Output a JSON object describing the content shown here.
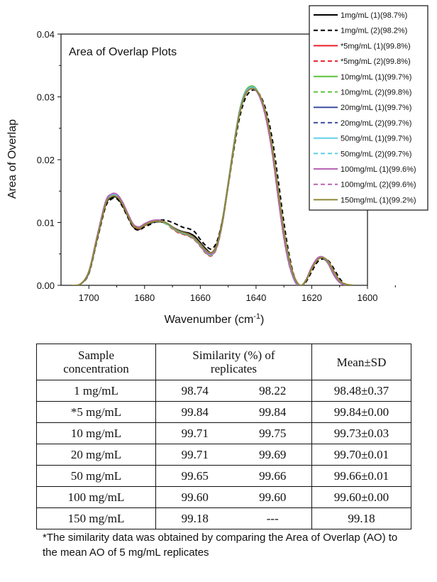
{
  "chart_data": {
    "type": "line",
    "title": "Area of Overlap Plots",
    "xlabel": "Wavenumber (cm",
    "xlabel_sup": "-1",
    "xlabel_end": ")",
    "ylabel": "Area of Overlap",
    "xlim": [
      1710,
      1600
    ],
    "ylim": [
      0,
      0.04
    ],
    "xticks": [
      "1700",
      "1680",
      "1660",
      "1640",
      "1620",
      "1600"
    ],
    "yticks": [
      "0.00",
      "0.01",
      "0.02",
      "0.03",
      "0.04"
    ],
    "x": [
      1706,
      1703,
      1700,
      1697,
      1694,
      1692,
      1690,
      1688,
      1686,
      1684,
      1682,
      1680,
      1678,
      1676,
      1674,
      1672,
      1670,
      1668,
      1666,
      1664,
      1662,
      1660,
      1658,
      1656,
      1654,
      1652,
      1650,
      1648,
      1646,
      1644,
      1642,
      1640,
      1638,
      1636,
      1634,
      1632,
      1630,
      1628,
      1626,
      1624,
      1622,
      1620,
      1618,
      1616,
      1614,
      1612,
      1610,
      1608,
      1605
    ],
    "legend_position": "top-right",
    "series": [
      {
        "name": "1mg/mL (1)(98.7%)",
        "color": "#000000",
        "dash": "solid",
        "values": [
          0,
          0.0002,
          0.002,
          0.0075,
          0.0128,
          0.0139,
          0.014,
          0.0128,
          0.011,
          0.0093,
          0.0089,
          0.0095,
          0.0099,
          0.0101,
          0.0101,
          0.0098,
          0.0093,
          0.0088,
          0.0085,
          0.0083,
          0.0078,
          0.0068,
          0.0058,
          0.0052,
          0.0066,
          0.0105,
          0.0162,
          0.0222,
          0.0272,
          0.0302,
          0.0313,
          0.0311,
          0.0295,
          0.0262,
          0.0212,
          0.0145,
          0.008,
          0.0035,
          0.0007,
          -0.0002,
          0.0008,
          0.0027,
          0.0041,
          0.0043,
          0.0034,
          0.0016,
          0.0005,
          0.0001,
          0
        ]
      },
      {
        "name": "1mg/mL (2)(98.2%)",
        "color": "#000000",
        "dash": "dashed",
        "values": [
          0,
          0.0002,
          0.0019,
          0.0073,
          0.0125,
          0.0137,
          0.0138,
          0.0126,
          0.0108,
          0.0092,
          0.0088,
          0.0093,
          0.0097,
          0.0101,
          0.0104,
          0.0103,
          0.01,
          0.0096,
          0.0092,
          0.009,
          0.0085,
          0.0073,
          0.0063,
          0.0058,
          0.007,
          0.0105,
          0.0158,
          0.0215,
          0.0265,
          0.0296,
          0.0309,
          0.031,
          0.0298,
          0.0272,
          0.0228,
          0.0166,
          0.01,
          0.0046,
          0.0011,
          0,
          0.0006,
          0.0022,
          0.0037,
          0.0042,
          0.0039,
          0.0026,
          0.0011,
          0.0002,
          0
        ]
      },
      {
        "name": "*5mg/mL (1)(99.8%)",
        "color": "#e8212b",
        "dash": "solid",
        "values": [
          0,
          0.0002,
          0.0022,
          0.0078,
          0.0132,
          0.0143,
          0.0143,
          0.0131,
          0.0112,
          0.0095,
          0.0091,
          0.0096,
          0.0101,
          0.0103,
          0.0102,
          0.0098,
          0.0091,
          0.0085,
          0.0082,
          0.0079,
          0.0073,
          0.0063,
          0.0052,
          0.0048,
          0.0062,
          0.0102,
          0.016,
          0.0222,
          0.0275,
          0.0306,
          0.0316,
          0.0312,
          0.0293,
          0.0258,
          0.0206,
          0.0139,
          0.0076,
          0.0032,
          0.0006,
          -0.0002,
          0.0009,
          0.0029,
          0.0042,
          0.0044,
          0.0034,
          0.0016,
          0.0005,
          0.0001,
          0
        ]
      },
      {
        "name": "*5mg/mL (2)(99.8%)",
        "color": "#e8212b",
        "dash": "dashed",
        "values": [
          0,
          0.0002,
          0.0022,
          0.0078,
          0.0131,
          0.0142,
          0.0142,
          0.013,
          0.0111,
          0.0094,
          0.009,
          0.0095,
          0.01,
          0.0102,
          0.0101,
          0.0097,
          0.009,
          0.0084,
          0.0081,
          0.0078,
          0.0072,
          0.0062,
          0.0051,
          0.0047,
          0.0061,
          0.0101,
          0.0159,
          0.0221,
          0.0274,
          0.0305,
          0.0315,
          0.0311,
          0.0292,
          0.0257,
          0.0205,
          0.0138,
          0.0075,
          0.0031,
          0.0006,
          -0.0002,
          0.0009,
          0.0029,
          0.0042,
          0.0044,
          0.0034,
          0.0016,
          0.0005,
          0.0001,
          0
        ]
      },
      {
        "name": "10mg/mL (1)(99.7%)",
        "color": "#5cc23a",
        "dash": "solid",
        "values": [
          0,
          0.0002,
          0.0022,
          0.0078,
          0.0132,
          0.0144,
          0.0144,
          0.0132,
          0.0113,
          0.0096,
          0.0092,
          0.0097,
          0.0101,
          0.0103,
          0.0102,
          0.0098,
          0.0092,
          0.0086,
          0.0083,
          0.008,
          0.0074,
          0.0064,
          0.0053,
          0.0049,
          0.0063,
          0.0103,
          0.0161,
          0.0223,
          0.0276,
          0.0307,
          0.0317,
          0.0313,
          0.0294,
          0.0259,
          0.0207,
          0.014,
          0.0077,
          0.0033,
          0.0006,
          -0.0002,
          0.0009,
          0.0029,
          0.0042,
          0.0044,
          0.0034,
          0.0016,
          0.0005,
          0.0001,
          0
        ]
      },
      {
        "name": "10mg/mL (2)(99.8%)",
        "color": "#5cc23a",
        "dash": "dashed",
        "values": [
          0,
          0.0002,
          0.0022,
          0.0078,
          0.0132,
          0.0143,
          0.0143,
          0.0131,
          0.0112,
          0.0095,
          0.0091,
          0.0096,
          0.01,
          0.0102,
          0.0101,
          0.0097,
          0.0091,
          0.0085,
          0.0082,
          0.0079,
          0.0073,
          0.0063,
          0.0052,
          0.0048,
          0.0062,
          0.0102,
          0.016,
          0.0222,
          0.0275,
          0.0306,
          0.0316,
          0.0312,
          0.0293,
          0.0258,
          0.0206,
          0.0139,
          0.0076,
          0.0032,
          0.0006,
          -0.0002,
          0.0009,
          0.0029,
          0.0042,
          0.0044,
          0.0034,
          0.0016,
          0.0005,
          0.0001,
          0
        ]
      },
      {
        "name": "20mg/mL (1)(99.7%)",
        "color": "#3d4fa0",
        "dash": "solid",
        "values": [
          0,
          0.0002,
          0.0021,
          0.0077,
          0.0131,
          0.0143,
          0.0143,
          0.0131,
          0.0112,
          0.0095,
          0.0091,
          0.0096,
          0.01,
          0.0102,
          0.0102,
          0.0098,
          0.0092,
          0.0086,
          0.0083,
          0.008,
          0.0074,
          0.0064,
          0.0053,
          0.0049,
          0.0063,
          0.0102,
          0.016,
          0.0221,
          0.0274,
          0.0305,
          0.0315,
          0.0312,
          0.0294,
          0.026,
          0.0208,
          0.0141,
          0.0078,
          0.0033,
          0.0006,
          -0.0002,
          0.0009,
          0.0028,
          0.0042,
          0.0044,
          0.0035,
          0.0017,
          0.0005,
          0.0001,
          0
        ]
      },
      {
        "name": "20mg/mL (2)(99.7%)",
        "color": "#3d4fa0",
        "dash": "dashed",
        "values": [
          0,
          0.0002,
          0.0021,
          0.0077,
          0.0131,
          0.0142,
          0.0142,
          0.013,
          0.0111,
          0.0095,
          0.0091,
          0.0096,
          0.01,
          0.0102,
          0.0102,
          0.0098,
          0.0092,
          0.0086,
          0.0083,
          0.008,
          0.0074,
          0.0064,
          0.0053,
          0.0049,
          0.0063,
          0.0102,
          0.016,
          0.0221,
          0.0274,
          0.0305,
          0.0315,
          0.0312,
          0.0294,
          0.026,
          0.0208,
          0.0141,
          0.0078,
          0.0033,
          0.0006,
          -0.0002,
          0.0009,
          0.0028,
          0.0042,
          0.0044,
          0.0035,
          0.0017,
          0.0005,
          0.0001,
          0
        ]
      },
      {
        "name": "50mg/mL (1)(99.7%)",
        "color": "#5fcfe6",
        "dash": "solid",
        "values": [
          0,
          0.0002,
          0.0021,
          0.0077,
          0.0131,
          0.0143,
          0.0143,
          0.0131,
          0.0112,
          0.0095,
          0.0091,
          0.0096,
          0.01,
          0.0102,
          0.0102,
          0.0098,
          0.0092,
          0.0086,
          0.0083,
          0.008,
          0.0074,
          0.0064,
          0.0053,
          0.0049,
          0.0063,
          0.0102,
          0.016,
          0.0221,
          0.0274,
          0.0305,
          0.0315,
          0.0312,
          0.0294,
          0.026,
          0.0208,
          0.0141,
          0.0078,
          0.0033,
          0.0006,
          -0.0002,
          0.0009,
          0.0028,
          0.0042,
          0.0044,
          0.0035,
          0.0017,
          0.0005,
          0.0001,
          0
        ]
      },
      {
        "name": "50mg/mL (2)(99.7%)",
        "color": "#5fcfe6",
        "dash": "dashed",
        "values": [
          0,
          0.0002,
          0.0021,
          0.0077,
          0.0131,
          0.0143,
          0.0143,
          0.0131,
          0.0112,
          0.0095,
          0.0091,
          0.0096,
          0.01,
          0.0102,
          0.0102,
          0.0098,
          0.0092,
          0.0086,
          0.0083,
          0.008,
          0.0074,
          0.0064,
          0.0053,
          0.0049,
          0.0063,
          0.0102,
          0.016,
          0.0221,
          0.0274,
          0.0305,
          0.0315,
          0.0312,
          0.0294,
          0.026,
          0.0208,
          0.0141,
          0.0078,
          0.0033,
          0.0006,
          -0.0002,
          0.0009,
          0.0028,
          0.0042,
          0.0044,
          0.0035,
          0.0017,
          0.0005,
          0.0001,
          0
        ]
      },
      {
        "name": "100mg/mL (1)(99.6%)",
        "color": "#b865b5",
        "dash": "solid",
        "values": [
          0,
          0.0002,
          0.0022,
          0.0079,
          0.0133,
          0.0145,
          0.0145,
          0.0133,
          0.0114,
          0.0097,
          0.0093,
          0.0098,
          0.0102,
          0.0104,
          0.0103,
          0.0099,
          0.0093,
          0.0087,
          0.0084,
          0.0081,
          0.0075,
          0.0065,
          0.0054,
          0.005,
          0.0063,
          0.0102,
          0.0159,
          0.022,
          0.0272,
          0.0303,
          0.0313,
          0.031,
          0.0292,
          0.0258,
          0.0207,
          0.014,
          0.0078,
          0.0034,
          0.0007,
          -0.0002,
          0.0009,
          0.0029,
          0.0043,
          0.0045,
          0.0035,
          0.0017,
          0.0005,
          0.0001,
          0
        ]
      },
      {
        "name": "100mg/mL (2)(99.6%)",
        "color": "#b865b5",
        "dash": "dashed",
        "values": [
          0,
          0.0002,
          0.0022,
          0.0079,
          0.0133,
          0.0145,
          0.0145,
          0.0133,
          0.0114,
          0.0097,
          0.0093,
          0.0098,
          0.0102,
          0.0104,
          0.0103,
          0.0099,
          0.0093,
          0.0087,
          0.0084,
          0.0081,
          0.0075,
          0.0065,
          0.0054,
          0.005,
          0.0063,
          0.0102,
          0.0159,
          0.022,
          0.0272,
          0.0303,
          0.0313,
          0.031,
          0.0292,
          0.0258,
          0.0207,
          0.014,
          0.0078,
          0.0034,
          0.0007,
          -0.0002,
          0.0009,
          0.0029,
          0.0043,
          0.0045,
          0.0035,
          0.0017,
          0.0005,
          0.0001,
          0
        ]
      },
      {
        "name": "150mg/mL (1)(99.2%)",
        "color": "#8d8a35",
        "dash": "solid",
        "values": [
          0,
          0.0002,
          0.0021,
          0.0076,
          0.0129,
          0.0141,
          0.0141,
          0.013,
          0.0111,
          0.0095,
          0.0091,
          0.0096,
          0.01,
          0.0102,
          0.0102,
          0.0099,
          0.0093,
          0.0087,
          0.0084,
          0.0081,
          0.0075,
          0.0066,
          0.0056,
          0.0052,
          0.0065,
          0.0103,
          0.0159,
          0.0219,
          0.0271,
          0.0302,
          0.0313,
          0.0311,
          0.0296,
          0.0265,
          0.0216,
          0.0152,
          0.0088,
          0.0041,
          0.0011,
          0,
          0.0008,
          0.0026,
          0.004,
          0.0044,
          0.0038,
          0.0022,
          0.0008,
          0.0002,
          0
        ]
      }
    ]
  },
  "table": {
    "headers": {
      "sample": [
        "Sample",
        "concentration"
      ],
      "similarity": [
        "Similarity (%) of",
        "replicates"
      ],
      "mean": "Mean±SD"
    },
    "rows": [
      {
        "sample": "1 mg/mL",
        "rep1": "98.74",
        "rep2": "98.22",
        "mean": "98.48±0.37"
      },
      {
        "sample": "*5 mg/mL",
        "rep1": "99.84",
        "rep2": "99.84",
        "mean": "99.84±0.00"
      },
      {
        "sample": "10 mg/mL",
        "rep1": "99.71",
        "rep2": "99.75",
        "mean": "99.73±0.03"
      },
      {
        "sample": "20 mg/mL",
        "rep1": "99.71",
        "rep2": "99.69",
        "mean": "99.70±0.01"
      },
      {
        "sample": "50 mg/mL",
        "rep1": "99.65",
        "rep2": "99.66",
        "mean": "99.66±0.01"
      },
      {
        "sample": "100 mg/mL",
        "rep1": "99.60",
        "rep2": "99.60",
        "mean": "99.60±0.00"
      },
      {
        "sample": "150 mg/mL",
        "rep1": "99.18",
        "rep2": "---",
        "mean": "99.18"
      }
    ]
  },
  "footnote": "*The similarity data was obtained by comparing the Area of Overlap (AO) to the mean AO of 5 mg/mL replicates"
}
